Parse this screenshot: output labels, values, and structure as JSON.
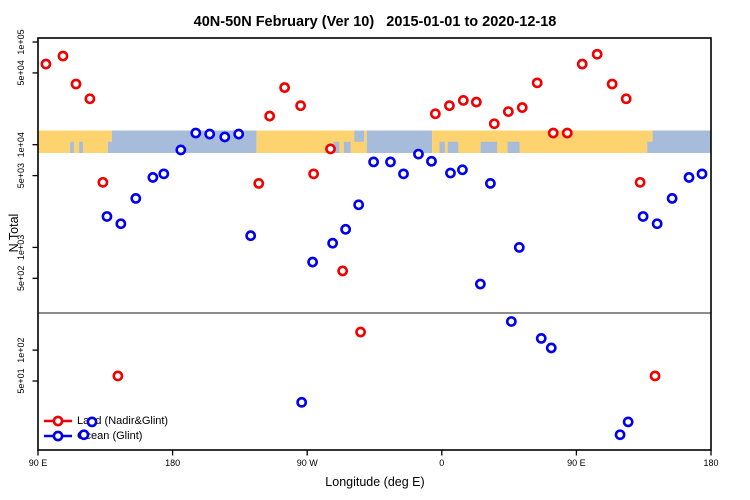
{
  "chart_data": {
    "type": "scatter",
    "title": "40N-50N February (Ver 10)   2015-01-01 to 2020-12-18",
    "xlabel": "Longitude (deg E)",
    "ylabel": "N Total",
    "x_axis": {
      "note": "longitude axis starts at 90E and wraps eastward; stored as axis-degrees 90..540",
      "range": [
        90,
        540
      ],
      "ticks": [
        {
          "value": 90,
          "label": "90 E"
        },
        {
          "value": 180,
          "label": "180"
        },
        {
          "value": 270,
          "label": "90 W"
        },
        {
          "value": 360,
          "label": "0"
        },
        {
          "value": 450,
          "label": "90 E"
        },
        {
          "value": 540,
          "label": "180"
        }
      ]
    },
    "y_axis": {
      "scale": "log",
      "range": [
        11,
        110000
      ],
      "ticks": [
        {
          "value": 100000,
          "label": "1e+05"
        },
        {
          "value": 50000,
          "label": "5e+04"
        },
        {
          "value": 10000,
          "label": "1e+04"
        },
        {
          "value": 5000,
          "label": "5e+03"
        },
        {
          "value": 1000,
          "label": "1e+03"
        },
        {
          "value": 500,
          "label": "5e+02"
        },
        {
          "value": 100,
          "label": "1e+02"
        },
        {
          "value": 50,
          "label": "5e+01"
        }
      ]
    },
    "threshold_line": {
      "value": 230,
      "color": "#8c8c8c"
    },
    "map_band": {
      "land_color": "#fcd36f",
      "ocean_color": "#a7bcda",
      "center_value": 10000,
      "segments": [
        {
          "from": 90,
          "to": 136.7,
          "surface": "land"
        },
        {
          "from": 136.7,
          "to": 236.2,
          "surface": "ocean"
        },
        {
          "from": 236.2,
          "to": 309.8,
          "surface": "land"
        },
        {
          "from": 309.8,
          "to": 353.5,
          "surface": "ocean"
        },
        {
          "from": 353.5,
          "to": 497.3,
          "surface": "land"
        },
        {
          "from": 497.3,
          "to": 540,
          "surface": "ocean"
        }
      ],
      "patches": [
        {
          "from": 111.5,
          "to": 114,
          "surface": "ocean",
          "half": "bottom"
        },
        {
          "from": 117.5,
          "to": 120,
          "surface": "ocean",
          "half": "bottom"
        },
        {
          "from": 136.7,
          "to": 139.5,
          "surface": "land",
          "half": "top"
        },
        {
          "from": 287.5,
          "to": 291.5,
          "surface": "ocean",
          "half": "bottom"
        },
        {
          "from": 294.5,
          "to": 299,
          "surface": "ocean",
          "half": "bottom"
        },
        {
          "from": 301.5,
          "to": 308,
          "surface": "ocean",
          "half": "top"
        },
        {
          "from": 358.5,
          "to": 362,
          "surface": "ocean",
          "half": "bottom"
        },
        {
          "from": 364,
          "to": 371,
          "surface": "ocean",
          "half": "bottom"
        },
        {
          "from": 386,
          "to": 397,
          "surface": "ocean",
          "half": "bottom"
        },
        {
          "from": 404,
          "to": 412,
          "surface": "ocean",
          "half": "bottom"
        },
        {
          "from": 497.3,
          "to": 501,
          "surface": "land",
          "half": "top"
        }
      ]
    },
    "series": [
      {
        "name": "Land (Nadir&Glint)",
        "color": "#f00000",
        "points": [
          [
            95.3,
            61000
          ],
          [
            106.7,
            73000
          ],
          [
            115.4,
            39000
          ],
          [
            124.7,
            28000
          ],
          [
            133.4,
            4300
          ],
          [
            143.4,
            56
          ],
          [
            237.6,
            4200
          ],
          [
            244.9,
            19000
          ],
          [
            254.9,
            36000
          ],
          [
            265.6,
            24000
          ],
          [
            274.3,
            5200
          ],
          [
            285.6,
            9100
          ],
          [
            293.7,
            590
          ],
          [
            305.7,
            150
          ],
          [
            355.7,
            20000
          ],
          [
            365.1,
            24000
          ],
          [
            374.4,
            27000
          ],
          [
            383.1,
            26000
          ],
          [
            395.1,
            16000
          ],
          [
            404.5,
            21000
          ],
          [
            413.8,
            23000
          ],
          [
            423.8,
            40000
          ],
          [
            434.5,
            13000
          ],
          [
            443.9,
            13000
          ],
          [
            453.9,
            61000
          ],
          [
            463.9,
            76000
          ],
          [
            473.9,
            39000
          ],
          [
            483.3,
            28000
          ],
          [
            492.6,
            4300
          ],
          [
            502.6,
            56
          ]
        ]
      },
      {
        "name": "Ocean (Glint)",
        "color": "#0000f0",
        "points": [
          [
            120.7,
            15
          ],
          [
            126.1,
            20
          ],
          [
            136.1,
            2000
          ],
          [
            145.4,
            1700
          ],
          [
            155.4,
            3000
          ],
          [
            166.8,
            4800
          ],
          [
            174.1,
            5200
          ],
          [
            185.5,
            8900
          ],
          [
            195.5,
            13000
          ],
          [
            204.8,
            12700
          ],
          [
            214.9,
            11900
          ],
          [
            224.2,
            12700
          ],
          [
            232.2,
            1300
          ],
          [
            266.3,
            31
          ],
          [
            273.6,
            720
          ],
          [
            287.0,
            1100
          ],
          [
            295.7,
            1500
          ],
          [
            304.4,
            2600
          ],
          [
            314.4,
            6800
          ],
          [
            325.7,
            6800
          ],
          [
            334.4,
            5200
          ],
          [
            344.4,
            8100
          ],
          [
            353.1,
            6900
          ],
          [
            365.8,
            5300
          ],
          [
            373.8,
            5700
          ],
          [
            385.8,
            440
          ],
          [
            392.5,
            4200
          ],
          [
            406.5,
            190
          ],
          [
            411.8,
            1000
          ],
          [
            426.5,
            130
          ],
          [
            433.2,
            105
          ],
          [
            479.2,
            15
          ],
          [
            484.6,
            20
          ],
          [
            494.6,
            2000
          ],
          [
            504.0,
            1700
          ],
          [
            514.0,
            3000
          ],
          [
            525.3,
            4800
          ],
          [
            534.0,
            5200
          ]
        ]
      }
    ],
    "legend": {
      "position": "bottom-left",
      "entries": [
        {
          "label": "Land (Nadir&Glint)",
          "color": "#f00000"
        },
        {
          "label": "Ocean (Glint)",
          "color": "#0000f0"
        }
      ]
    }
  }
}
